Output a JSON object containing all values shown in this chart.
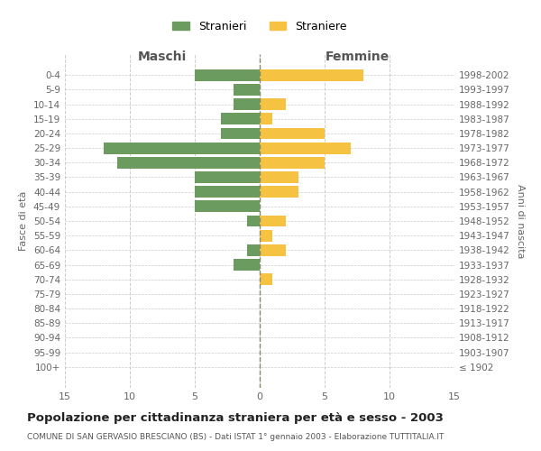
{
  "age_groups": [
    "100+",
    "95-99",
    "90-94",
    "85-89",
    "80-84",
    "75-79",
    "70-74",
    "65-69",
    "60-64",
    "55-59",
    "50-54",
    "45-49",
    "40-44",
    "35-39",
    "30-34",
    "25-29",
    "20-24",
    "15-19",
    "10-14",
    "5-9",
    "0-4"
  ],
  "birth_years": [
    "≤ 1902",
    "1903-1907",
    "1908-1912",
    "1913-1917",
    "1918-1922",
    "1923-1927",
    "1928-1932",
    "1933-1937",
    "1938-1942",
    "1943-1947",
    "1948-1952",
    "1953-1957",
    "1958-1962",
    "1963-1967",
    "1968-1972",
    "1973-1977",
    "1978-1982",
    "1983-1987",
    "1988-1992",
    "1993-1997",
    "1998-2002"
  ],
  "males": [
    0,
    0,
    0,
    0,
    0,
    0,
    0,
    2,
    1,
    0,
    1,
    5,
    5,
    5,
    11,
    12,
    3,
    3,
    2,
    2,
    5
  ],
  "females": [
    0,
    0,
    0,
    0,
    0,
    0,
    1,
    0,
    2,
    1,
    2,
    0,
    3,
    3,
    5,
    7,
    5,
    1,
    2,
    0,
    8
  ],
  "male_color": "#6b9b5e",
  "female_color": "#f5c242",
  "title": "Popolazione per cittadinanza straniera per età e sesso - 2003",
  "subtitle": "COMUNE DI SAN GERVASIO BRESCIANO (BS) - Dati ISTAT 1° gennaio 2003 - Elaborazione TUTTITALIA.IT",
  "xlabel_left": "Maschi",
  "xlabel_right": "Femmine",
  "ylabel_left": "Fasce di età",
  "ylabel_right": "Anni di nascita",
  "legend_stranieri": "Stranieri",
  "legend_straniere": "Straniere",
  "xlim": 15,
  "background_color": "#ffffff",
  "grid_color": "#cccccc",
  "bar_height": 0.8
}
